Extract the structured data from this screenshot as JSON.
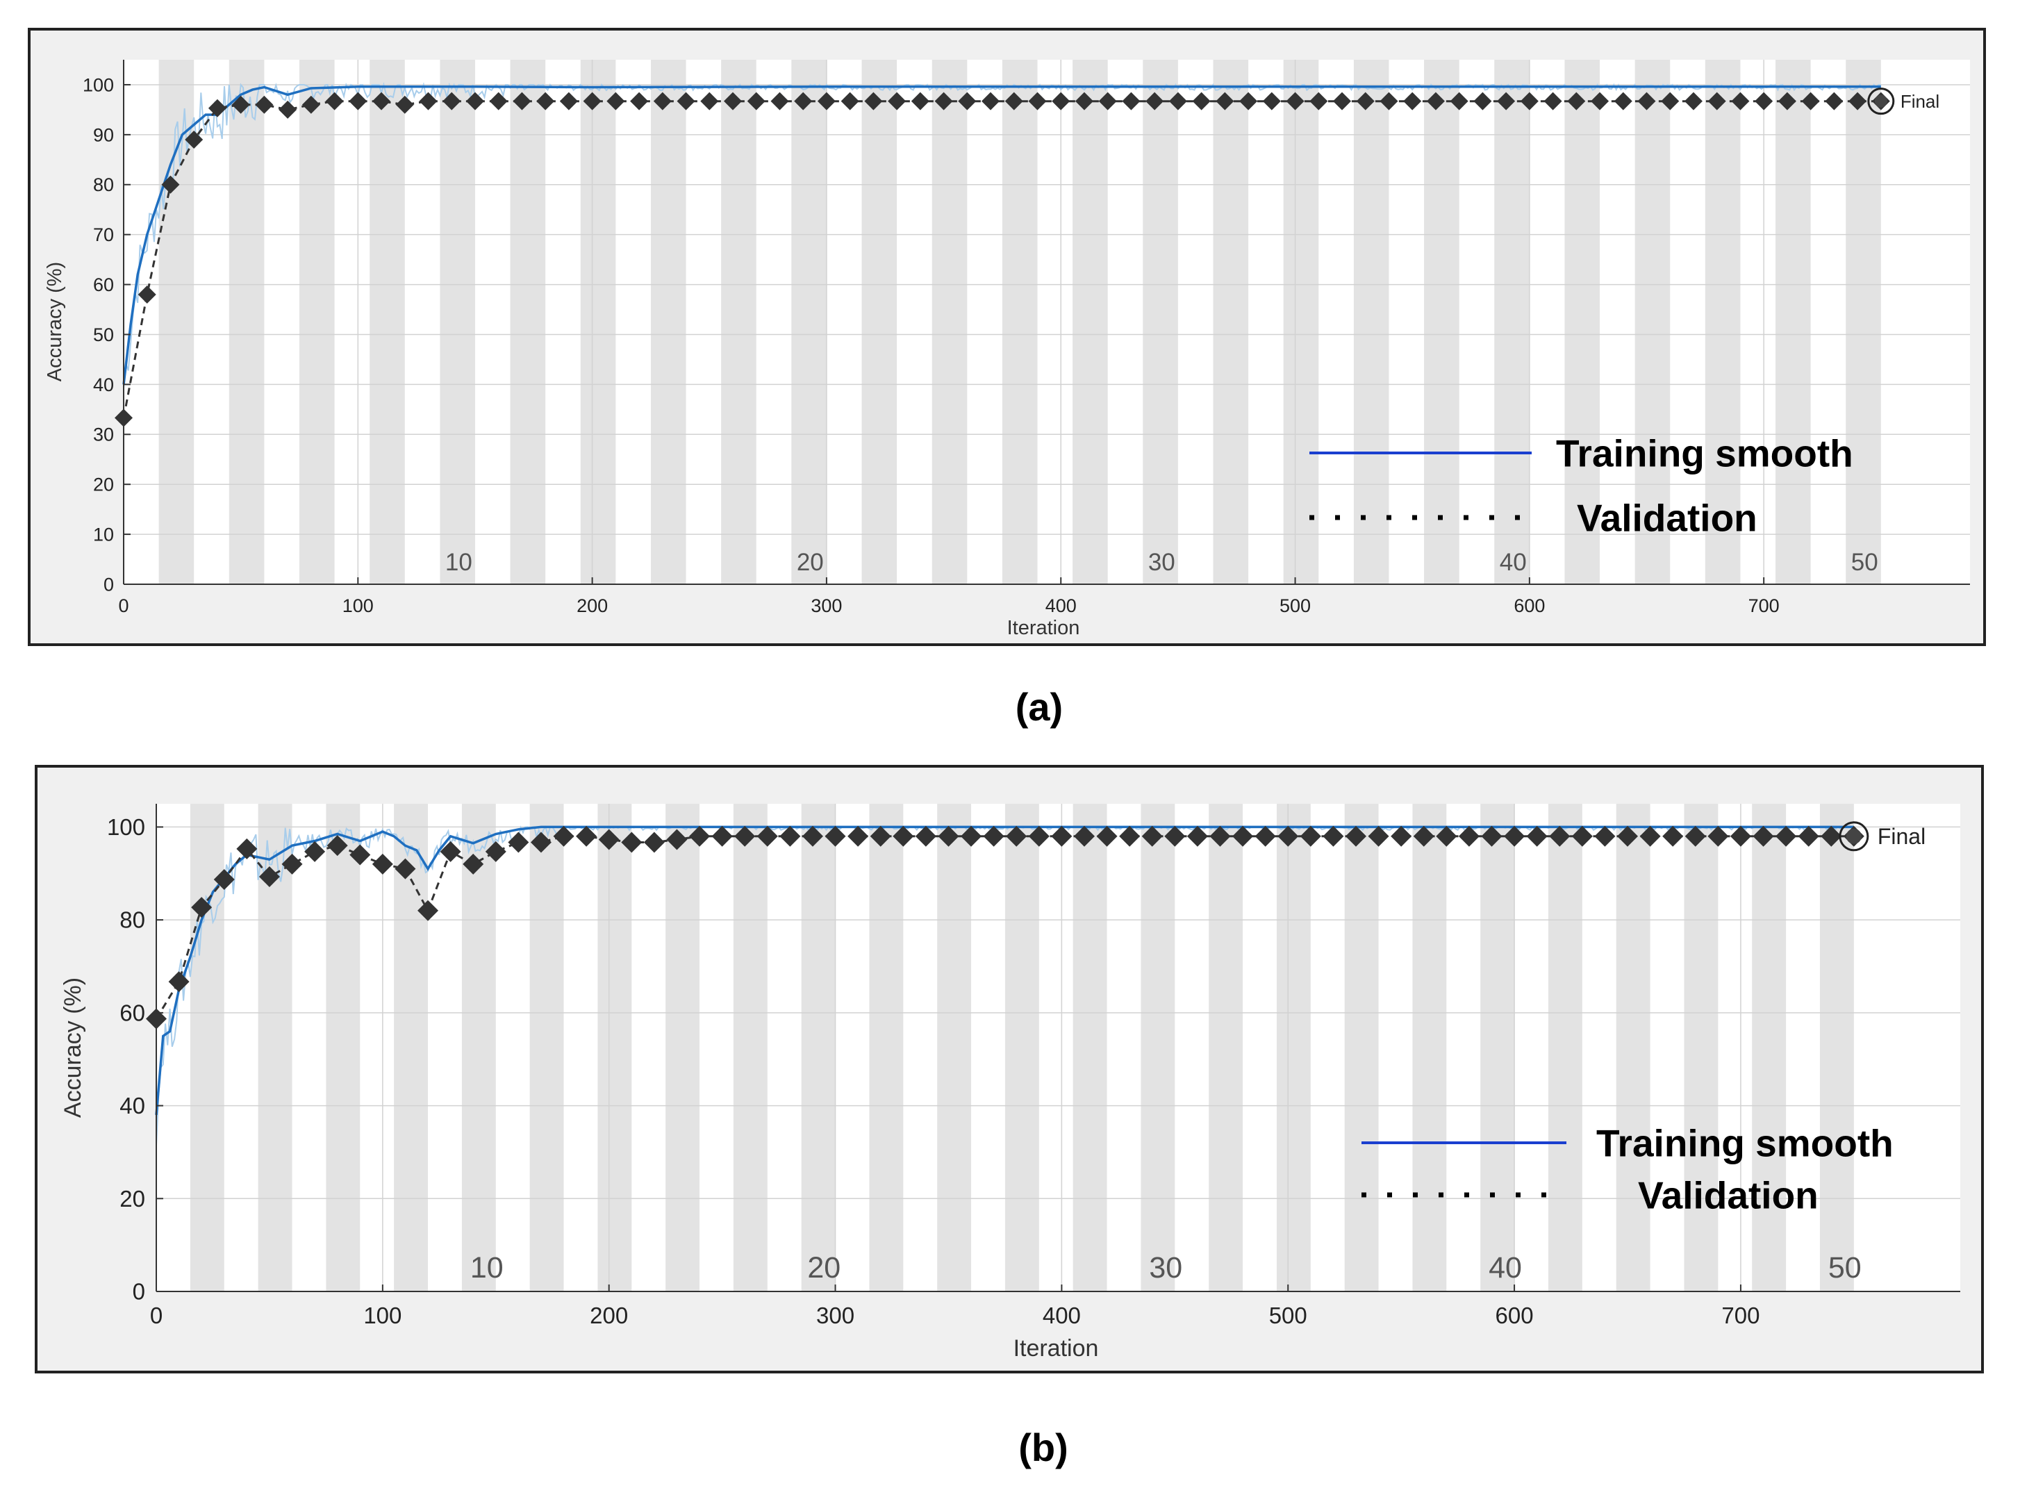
{
  "chart_data": [
    {
      "type": "line",
      "caption": "(a)",
      "xlabel": "Iteration",
      "ylabel": "Accuracy (%)",
      "xlim": [
        0,
        788
      ],
      "ylim": [
        0,
        105
      ],
      "xticks": [
        0,
        100,
        200,
        300,
        400,
        500,
        600,
        700
      ],
      "yticks": [
        0,
        10,
        20,
        30,
        40,
        50,
        60,
        70,
        80,
        90,
        100
      ],
      "epochs": 50,
      "iterations_per_epoch": 15,
      "epoch_labels": [
        {
          "label": "10",
          "x": 143
        },
        {
          "label": "20",
          "x": 293
        },
        {
          "label": "30",
          "x": 443
        },
        {
          "label": "40",
          "x": 593
        },
        {
          "label": "50",
          "x": 743
        }
      ],
      "legend": {
        "training": "Training smooth",
        "validation": "Validation"
      },
      "final_label": "Final",
      "colors": {
        "training": "#1f6fc0",
        "training_raw": "#a8cdeb",
        "validation": "#333333",
        "shade": "#e3e3e3",
        "frame_bg": "#f0f0f0"
      },
      "series": [
        {
          "name": "Training smooth",
          "x": [
            0,
            3,
            6,
            10,
            15,
            20,
            25,
            30,
            35,
            40,
            45,
            50,
            55,
            60,
            70,
            80,
            100,
            150,
            200,
            300,
            400,
            500,
            600,
            700,
            750
          ],
          "y": [
            40,
            52,
            62,
            70,
            77,
            84,
            90,
            92,
            94,
            94,
            96,
            98,
            99,
            99.5,
            98,
            99.3,
            99.6,
            99.6,
            99.5,
            99.6,
            99.6,
            99.6,
            99.6,
            99.6,
            99.6
          ]
        },
        {
          "name": "Validation",
          "x": [
            0,
            10,
            20,
            30,
            40,
            50,
            60,
            70,
            80,
            90,
            100,
            110,
            120,
            130,
            140,
            150,
            160,
            170,
            180,
            190,
            200,
            210,
            220,
            230,
            240,
            250,
            260,
            270,
            280,
            290,
            300,
            310,
            320,
            330,
            340,
            350,
            360,
            370,
            380,
            390,
            400,
            410,
            420,
            430,
            440,
            450,
            460,
            470,
            480,
            490,
            500,
            510,
            520,
            530,
            540,
            550,
            560,
            570,
            580,
            590,
            600,
            610,
            620,
            630,
            640,
            650,
            660,
            670,
            680,
            690,
            700,
            710,
            720,
            730,
            740,
            750
          ],
          "y": [
            33.3,
            58,
            80,
            89,
            95.3,
            96,
            96,
            95,
            96,
            96.7,
            96.7,
            96.7,
            96,
            96.7,
            96.7,
            96.7,
            96.7,
            96.7,
            96.7,
            96.7,
            96.7,
            96.7,
            96.7,
            96.7,
            96.7,
            96.7,
            96.7,
            96.7,
            96.7,
            96.7,
            96.7,
            96.7,
            96.7,
            96.7,
            96.7,
            96.7,
            96.7,
            96.7,
            96.7,
            96.7,
            96.7,
            96.7,
            96.7,
            96.7,
            96.7,
            96.7,
            96.7,
            96.7,
            96.7,
            96.7,
            96.7,
            96.7,
            96.7,
            96.7,
            96.7,
            96.7,
            96.7,
            96.7,
            96.7,
            96.7,
            96.7,
            96.7,
            96.7,
            96.7,
            96.7,
            96.7,
            96.7,
            96.7,
            96.7,
            96.7,
            96.7,
            96.7,
            96.7,
            96.7,
            96.7,
            96.7
          ]
        }
      ]
    },
    {
      "type": "line",
      "caption": "(b)",
      "xlabel": "Iteration",
      "ylabel": "Accuracy (%)",
      "xlim": [
        0,
        797
      ],
      "ylim": [
        0,
        105
      ],
      "xticks": [
        0,
        100,
        200,
        300,
        400,
        500,
        600,
        700
      ],
      "yticks": [
        0,
        20,
        40,
        60,
        80,
        100
      ],
      "epochs": 50,
      "iterations_per_epoch": 15,
      "epoch_labels": [
        {
          "label": "10",
          "x": 146
        },
        {
          "label": "20",
          "x": 295
        },
        {
          "label": "30",
          "x": 446
        },
        {
          "label": "40",
          "x": 596
        },
        {
          "label": "50",
          "x": 746
        }
      ],
      "legend": {
        "training": "Training smooth",
        "validation": "Validation"
      },
      "final_label": "Final",
      "colors": {
        "training": "#1f6fc0",
        "training_raw": "#a8cdeb",
        "validation": "#333333",
        "shade": "#e3e3e3",
        "frame_bg": "#f0f0f0"
      },
      "series": [
        {
          "name": "Training smooth",
          "x": [
            0,
            3,
            6,
            10,
            15,
            20,
            25,
            30,
            35,
            40,
            50,
            60,
            70,
            80,
            90,
            100,
            105,
            110,
            115,
            120,
            125,
            130,
            140,
            150,
            160,
            170,
            200,
            300,
            400,
            500,
            600,
            700,
            750
          ],
          "y": [
            38,
            55,
            56,
            65,
            72,
            80,
            86,
            89,
            92,
            94,
            93,
            96,
            97,
            98.5,
            97,
            99,
            98,
            96,
            95,
            91,
            95,
            98,
            96.5,
            98.5,
            99.5,
            100,
            100,
            100,
            100,
            100,
            100,
            100,
            100
          ]
        },
        {
          "name": "Validation",
          "x": [
            0,
            10,
            20,
            30,
            40,
            50,
            60,
            70,
            80,
            90,
            100,
            110,
            120,
            130,
            140,
            150,
            160,
            170,
            180,
            190,
            200,
            210,
            220,
            230,
            240,
            250,
            260,
            270,
            280,
            290,
            300,
            310,
            320,
            330,
            340,
            350,
            360,
            370,
            380,
            390,
            400,
            410,
            420,
            430,
            440,
            450,
            460,
            470,
            480,
            490,
            500,
            510,
            520,
            530,
            540,
            550,
            560,
            570,
            580,
            590,
            600,
            610,
            620,
            630,
            640,
            650,
            660,
            670,
            680,
            690,
            700,
            710,
            720,
            730,
            740,
            750
          ],
          "y": [
            58.7,
            66.7,
            82.7,
            88.7,
            95.3,
            89.3,
            92,
            94.7,
            96,
            94,
            92,
            91,
            82,
            94.7,
            92,
            94.7,
            96.7,
            96.7,
            98,
            98,
            97.3,
            96.7,
            96.7,
            97.3,
            98,
            98,
            98,
            98,
            98,
            98,
            98,
            98,
            98,
            98,
            98,
            98,
            98,
            98,
            98,
            98,
            98,
            98,
            98,
            98,
            98,
            98,
            98,
            98,
            98,
            98,
            98,
            98,
            98,
            98,
            98,
            98,
            98,
            98,
            98,
            98,
            98,
            98,
            98,
            98,
            98,
            98,
            98,
            98,
            98,
            98,
            98,
            98,
            98,
            98,
            98,
            98
          ]
        }
      ]
    }
  ]
}
